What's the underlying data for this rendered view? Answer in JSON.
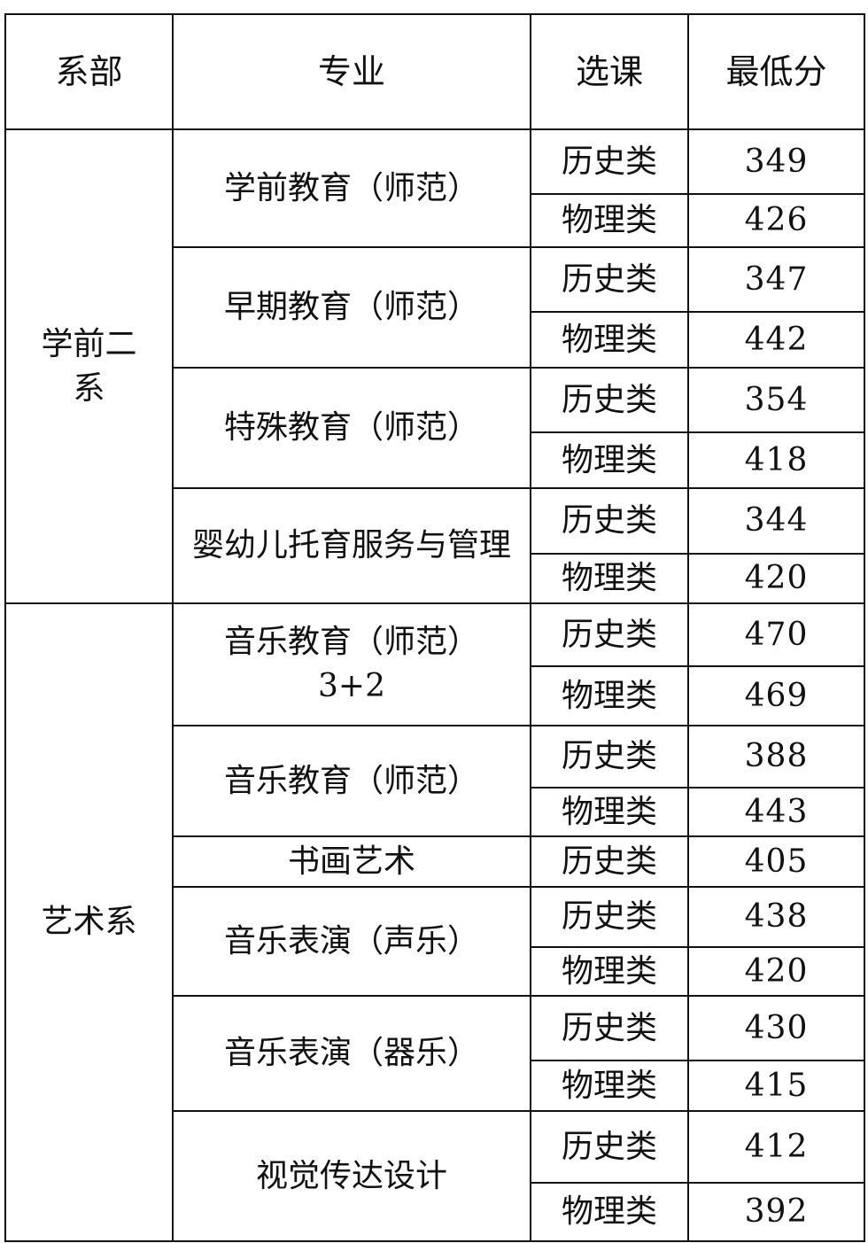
{
  "headers": [
    "系部",
    "专业",
    "选课",
    "最低分"
  ],
  "departments": [
    {
      "name": "学前二系",
      "majors": [
        {
          "name": "学前教育（师范）",
          "rows": [
            {
              "subject": "历史类",
              "score": "349"
            },
            {
              "subject": "物理类",
              "score": "426"
            }
          ]
        },
        {
          "name": "早期教育（师范）",
          "rows": [
            {
              "subject": "历史类",
              "score": "347"
            },
            {
              "subject": "物理类",
              "score": "442"
            }
          ]
        },
        {
          "name": "特殊教育（师范）",
          "rows": [
            {
              "subject": "历史类",
              "score": "354"
            },
            {
              "subject": "物理类",
              "score": "418"
            }
          ]
        },
        {
          "name": "婴幼儿托育服务与管理",
          "rows": [
            {
              "subject": "历史类",
              "score": "344"
            },
            {
              "subject": "物理类",
              "score": "420"
            }
          ]
        }
      ]
    },
    {
      "name": "艺术系",
      "majors": [
        {
          "name": "音乐教育（师范）3+2",
          "rows": [
            {
              "subject": "历史类",
              "score": "470"
            },
            {
              "subject": "物理类",
              "score": "469"
            }
          ]
        },
        {
          "name": "音乐教育（师范）",
          "rows": [
            {
              "subject": "历史类",
              "score": "388"
            },
            {
              "subject": "物理类",
              "score": "443"
            }
          ]
        },
        {
          "name": "书画艺术",
          "rows": [
            {
              "subject": "历史类",
              "score": "405"
            }
          ]
        },
        {
          "name": "音乐表演（声乐）",
          "rows": [
            {
              "subject": "历史类",
              "score": "438"
            },
            {
              "subject": "物理类",
              "score": "420"
            }
          ]
        },
        {
          "name": "音乐表演（器乐）",
          "rows": [
            {
              "subject": "历史类",
              "score": "430"
            },
            {
              "subject": "物理类",
              "score": "415"
            }
          ]
        },
        {
          "name": "视觉传达设计",
          "rows": [
            {
              "subject": "历史类",
              "score": "412"
            },
            {
              "subject": "物理类",
              "score": "392"
            }
          ]
        }
      ]
    }
  ]
}
